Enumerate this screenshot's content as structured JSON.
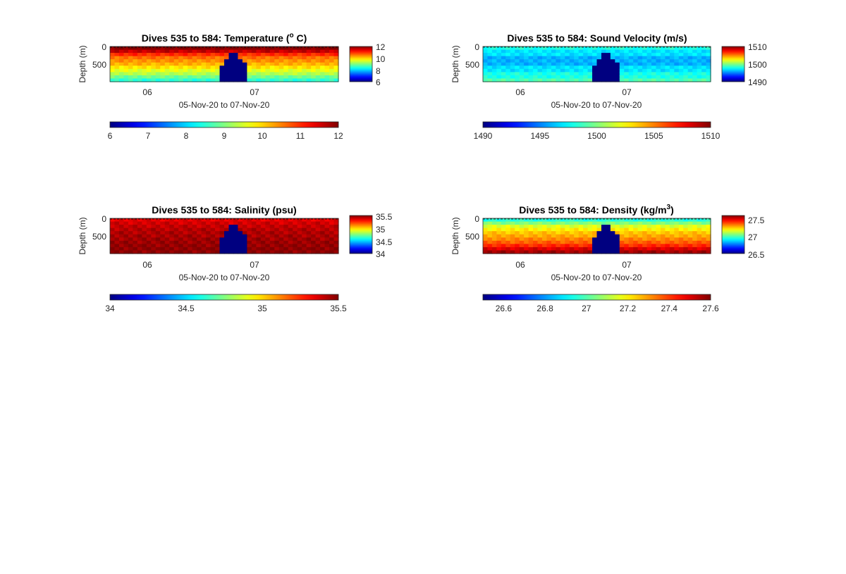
{
  "chart_data": [
    {
      "type": "heatmap",
      "title_main": "Dives 535 to 584: Temperature (",
      "title_sup": "o",
      "title_tail": " C)",
      "ylabel": "Depth (m)",
      "xlabel": "05-Nov-20 to 07-Nov-20",
      "x_ticks": [
        "06",
        "07"
      ],
      "y_ticks": [
        "0",
        "500"
      ],
      "depth_range": [
        0,
        1000
      ],
      "clim": [
        6,
        12
      ],
      "colorbar_side_ticks": [
        "12",
        "10",
        "8",
        "6"
      ],
      "colorbar_bottom_ticks": [
        "6",
        "7",
        "8",
        "9",
        "10",
        "11",
        "12"
      ],
      "profile_surface": [
        12.0,
        11.6,
        11.0,
        10.6,
        10.4,
        10.2,
        9.9,
        9.6,
        9.3,
        8.9,
        8.5
      ],
      "gap_depth_left": [
        1000,
        1000,
        1000,
        1000,
        1000,
        1000,
        1000,
        1000,
        1000,
        1000,
        1000,
        1000,
        1000,
        1000,
        1000,
        1000,
        1000,
        1000,
        1000,
        1000,
        1000,
        1000,
        1000,
        1000,
        500,
        320,
        160,
        160,
        300,
        450,
        1000,
        1000,
        1000,
        1000,
        1000,
        1000,
        1000,
        1000,
        1000,
        1000,
        1000,
        1000,
        1000,
        1000,
        1000,
        1000,
        1000,
        1000,
        1000,
        1000
      ]
    },
    {
      "type": "heatmap",
      "title_main": "Dives 535 to 584: Sound Velocity (m/s)",
      "title_sup": "",
      "title_tail": "",
      "ylabel": "Depth (m)",
      "xlabel": "05-Nov-20 to 07-Nov-20",
      "x_ticks": [
        "06",
        "07"
      ],
      "y_ticks": [
        "0",
        "500"
      ],
      "depth_range": [
        0,
        1000
      ],
      "clim": [
        1490,
        1510
      ],
      "colorbar_side_ticks": [
        "1510",
        "1500",
        "1490"
      ],
      "colorbar_bottom_ticks": [
        "1490",
        "1495",
        "1500",
        "1505",
        "1510"
      ],
      "profile_surface": [
        1498,
        1497,
        1497,
        1496,
        1496,
        1496,
        1497,
        1497,
        1498,
        1498,
        1499
      ]
    },
    {
      "type": "heatmap",
      "title_main": "Dives 535 to 584: Salinity (psu)",
      "title_sup": "",
      "title_tail": "",
      "ylabel": "Depth (m)",
      "xlabel": "05-Nov-20 to 07-Nov-20",
      "x_ticks": [
        "06",
        "07"
      ],
      "y_ticks": [
        "0",
        "500"
      ],
      "depth_range": [
        0,
        1000
      ],
      "clim": [
        34,
        35.5
      ],
      "colorbar_side_ticks": [
        "35.5",
        "35",
        "34.5",
        "34"
      ],
      "colorbar_bottom_ticks": [
        "34",
        "34.5",
        "35",
        "35.5"
      ],
      "profile_surface": [
        35.35,
        35.38,
        35.4,
        35.42,
        35.43,
        35.44,
        35.45,
        35.46,
        35.47,
        35.48,
        35.48
      ]
    },
    {
      "type": "heatmap",
      "title_main": "Dives 535 to 584: Density (kg/m",
      "title_sup": "3",
      "title_tail": ")",
      "ylabel": "Depth (m)",
      "xlabel": "05-Nov-20 to 07-Nov-20",
      "x_ticks": [
        "06",
        "07"
      ],
      "y_ticks": [
        "0",
        "500"
      ],
      "depth_range": [
        0,
        1000
      ],
      "clim": [
        26.5,
        27.6
      ],
      "colorbar_side_ticks": [
        "27.5",
        "27",
        "26.5"
      ],
      "colorbar_bottom_ticks": [
        "26.6",
        "26.8",
        "27",
        "27.2",
        "27.4",
        "27.6"
      ],
      "profile_surface": [
        26.95,
        27.05,
        27.15,
        27.2,
        27.25,
        27.28,
        27.32,
        27.36,
        27.42,
        27.5,
        27.56
      ]
    }
  ]
}
